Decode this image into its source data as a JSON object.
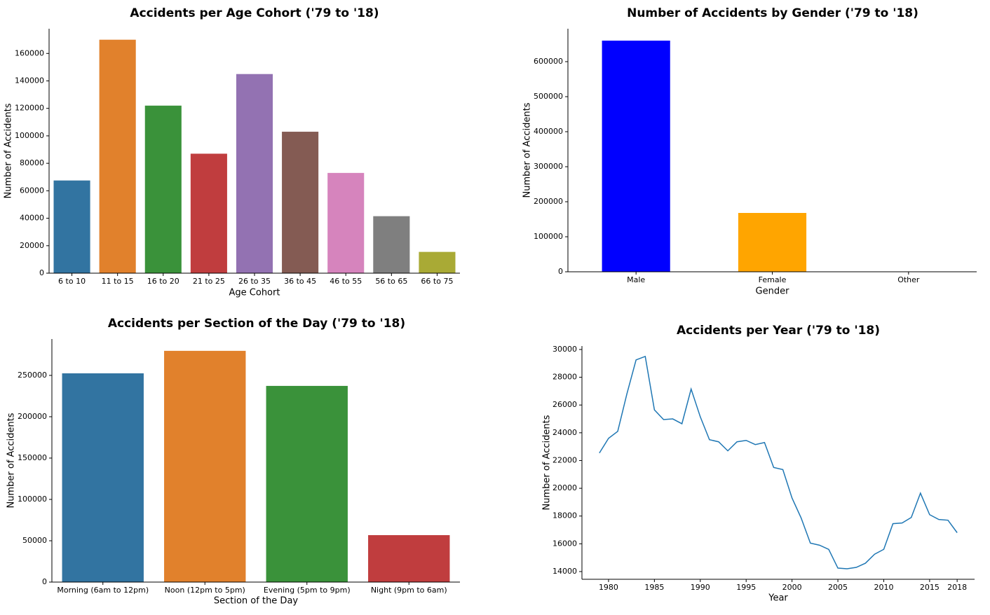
{
  "chart_data": [
    {
      "type": "bar",
      "title": "Accidents per Age Cohort  ('79 to '18)",
      "x_label": "Age Cohort",
      "y_label": "Number of Accidents",
      "categories": [
        "6 to 10",
        "11 to 15",
        "16 to 20",
        "21 to 25",
        "26 to 35",
        "36 to 45",
        "46 to 55",
        "56 to 65",
        "66 to 75"
      ],
      "values": [
        67500,
        170000,
        122000,
        87000,
        145000,
        103000,
        73000,
        41500,
        15500
      ],
      "colors": [
        "#3274a1",
        "#e1812c",
        "#3a923a",
        "#c03d3e",
        "#9372b2",
        "#845b53",
        "#d684bd",
        "#7f7f7f",
        "#a9aa35"
      ],
      "ylim": [
        0,
        178000
      ],
      "yticks": [
        0,
        20000,
        40000,
        60000,
        80000,
        100000,
        120000,
        140000,
        160000
      ]
    },
    {
      "type": "bar",
      "title": "Number of Accidents by Gender ('79 to '18)",
      "x_label": "Gender",
      "y_label": "Number of Accidents",
      "categories": [
        "Male",
        "Female",
        "Other"
      ],
      "values": [
        660000,
        168000,
        0
      ],
      "colors": [
        "#0000ff",
        "#ffa500",
        "#008000"
      ],
      "ylim": [
        0,
        694000
      ],
      "yticks": [
        0,
        100000,
        200000,
        300000,
        400000,
        500000,
        600000
      ]
    },
    {
      "type": "bar",
      "title": "Accidents per Section of the Day ('79 to '18)",
      "x_label": "Section of the Day",
      "y_label": "Number of Accidents",
      "categories": [
        "Morning (6am to 12pm)",
        "Noon (12pm to 5pm)",
        "Evening (5pm to 9pm)",
        "Night (9pm to 6am)"
      ],
      "values": [
        252500,
        279700,
        237300,
        56800
      ],
      "colors": [
        "#3274a1",
        "#e1812c",
        "#3a923a",
        "#c03d3e"
      ],
      "ylim": [
        0,
        294000
      ],
      "yticks": [
        0,
        50000,
        100000,
        150000,
        200000,
        250000
      ]
    },
    {
      "type": "line",
      "title": "Accidents per Year ('79 to '18)",
      "x_label": "Year",
      "y_label": "Number of Accidents",
      "x": [
        1979,
        1980,
        1981,
        1982,
        1983,
        1984,
        1985,
        1986,
        1987,
        1988,
        1989,
        1990,
        1991,
        1992,
        1993,
        1994,
        1995,
        1996,
        1997,
        1998,
        1999,
        2000,
        2001,
        2002,
        2003,
        2004,
        2005,
        2006,
        2007,
        2008,
        2009,
        2010,
        2011,
        2012,
        2013,
        2014,
        2015,
        2016,
        2017,
        2018
      ],
      "values": [
        22540,
        23600,
        24100,
        26800,
        29250,
        29500,
        25650,
        24950,
        25000,
        24650,
        27150,
        25150,
        23500,
        23350,
        22700,
        23350,
        23450,
        23150,
        23300,
        21500,
        21350,
        19300,
        17850,
        16050,
        15900,
        15600,
        14250,
        14200,
        14300,
        14600,
        15250,
        15600,
        17450,
        17500,
        17900,
        19650,
        18100,
        17750,
        17700,
        16800
      ],
      "color": "#1f77b4",
      "xlim": [
        1977.1,
        2019.9
      ],
      "xticks": [
        1980,
        1985,
        1990,
        1995,
        2000,
        2005,
        2010,
        2015,
        2018
      ],
      "ylim": [
        13444,
        30250
      ],
      "yticks": [
        14000,
        16000,
        18000,
        20000,
        22000,
        24000,
        26000,
        28000,
        30000
      ]
    }
  ]
}
